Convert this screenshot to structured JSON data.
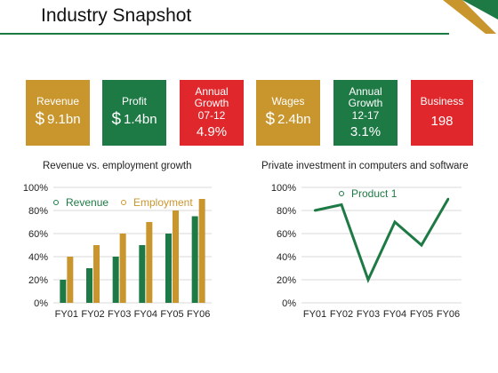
{
  "page": {
    "title": "Industry Snapshot"
  },
  "colors": {
    "gold": "#c9962e",
    "green": "#1e7a45",
    "red": "#e0272b",
    "grid": "#d9d9d9"
  },
  "stats": [
    {
      "label": "Revenue",
      "value": "9.1bn",
      "currency": "$",
      "color": "#c9962e"
    },
    {
      "label": "Profit",
      "value": "1.4bn",
      "currency": "$",
      "color": "#1e7a45"
    },
    {
      "label": "Annual Growth 07-12",
      "lines": [
        "Annual",
        "Growth",
        "07-12"
      ],
      "value": "4.9%",
      "color": "#e0272b"
    },
    {
      "label": "Wages",
      "value": "2.4bn",
      "currency": "$",
      "color": "#c9962e"
    },
    {
      "label": "Annual Growth 12-17",
      "lines": [
        "Annual",
        "Growth",
        "12-17"
      ],
      "value": "3.1%",
      "color": "#1e7a45"
    },
    {
      "label": "Business",
      "value": "198",
      "color": "#e0272b"
    }
  ],
  "chart_data": [
    {
      "type": "bar",
      "title": "Revenue vs. employment growth",
      "categories": [
        "FY01",
        "FY02",
        "FY03",
        "FY04",
        "FY05",
        "FY06"
      ],
      "series": [
        {
          "name": "Revenue",
          "values": [
            20,
            30,
            40,
            50,
            60,
            75
          ],
          "color": "#1e7a45"
        },
        {
          "name": "Employment",
          "values": [
            40,
            50,
            60,
            70,
            80,
            90
          ],
          "color": "#c9962e"
        }
      ],
      "ylim": [
        0,
        100
      ],
      "yticks": [
        "0%",
        "20%",
        "40%",
        "60%",
        "80%",
        "100%"
      ],
      "grid": true,
      "legend": "top-left"
    },
    {
      "type": "line",
      "title": "Private investment in computers and software",
      "categories": [
        "FY01",
        "FY02",
        "FY03",
        "FY04",
        "FY05",
        "FY06"
      ],
      "series": [
        {
          "name": "Product 1",
          "values": [
            80,
            85,
            20,
            70,
            50,
            90
          ],
          "color": "#1e7a45"
        }
      ],
      "ylim": [
        0,
        100
      ],
      "yticks": [
        "0%",
        "20%",
        "40%",
        "60%",
        "80%",
        "100%"
      ],
      "grid": true,
      "legend": "top-left"
    }
  ]
}
